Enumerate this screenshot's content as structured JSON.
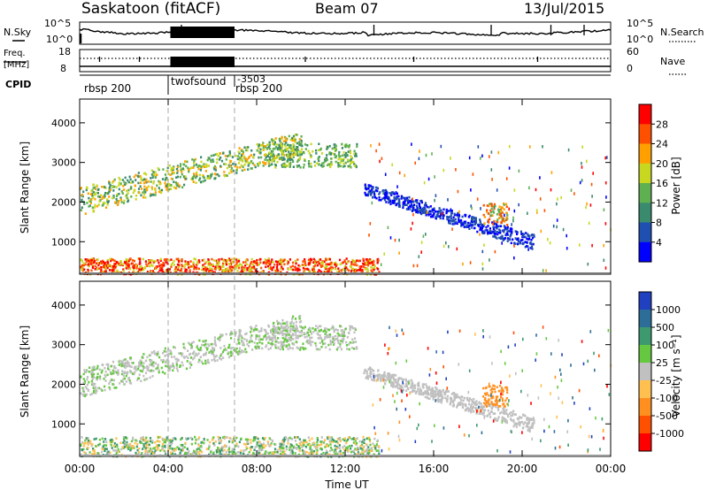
{
  "header": {
    "station": "Saskatoon (fitACF)",
    "beam": "Beam 07",
    "date": "13/Jul/2015"
  },
  "strips": {
    "nsky_label": "N.Sky",
    "nsky_ticks": [
      "10^5",
      "10^0"
    ],
    "nsearch_label": "N.Search",
    "nsearch_ticks": [
      "10^5",
      "10^0"
    ],
    "freq_label_1": "Freq.",
    "freq_label_2": "[MHz]",
    "freq_ticks": [
      "18",
      "8"
    ],
    "nave_label": "Nave",
    "nave_ticks": [
      "60",
      "0"
    ],
    "cpid_label": "CPID",
    "cpid_entries": [
      {
        "text": "rbsp 200",
        "start": "00:00"
      },
      {
        "text": "twofsound",
        "start": "04:00"
      },
      {
        "text": "-3503",
        "start": "07:00"
      },
      {
        "text": "rbsp 200",
        "start": "07:00"
      }
    ]
  },
  "time_axis": {
    "xlabel": "Time UT",
    "tick_labels": [
      "00:00",
      "04:00",
      "08:00",
      "12:00",
      "16:00",
      "20:00",
      "00:00"
    ]
  },
  "chart_data": [
    {
      "type": "heatmap",
      "name_key": "power",
      "ylabel": "Slant Range [km]",
      "ylim": [
        180,
        4600
      ],
      "yticks": [
        1000,
        2000,
        3000,
        4000
      ],
      "xlim_hours": [
        0,
        24
      ],
      "colorbar_label": "Power [dB]",
      "colorbar_ticks": [
        "4",
        "8",
        "12",
        "16",
        "20",
        "24",
        "28"
      ],
      "colors": [
        "#0000ff",
        "#1f4fb0",
        "#3a8a6e",
        "#5fb050",
        "#c8d820",
        "#ffa000",
        "#ff5000",
        "#ff0000"
      ],
      "features": [
        {
          "desc": "near-range scatter",
          "t": [
            0,
            13.5
          ],
          "range": [
            200,
            600
          ],
          "levels": [
            4,
            6,
            7
          ]
        },
        {
          "desc": "rising echo band",
          "t": [
            0,
            10
          ],
          "range_start": [
            1700,
            2100
          ],
          "range_end": [
            3200,
            3500
          ],
          "levels": [
            2,
            3,
            4,
            5
          ]
        },
        {
          "desc": "high band",
          "t": [
            8.5,
            12.5
          ],
          "range": [
            2900,
            3500
          ],
          "levels": [
            2,
            3,
            4
          ]
        },
        {
          "desc": "descending band",
          "t": [
            12.8,
            20.5
          ],
          "range_start": [
            2200,
            2200
          ],
          "range_end": [
            800,
            900
          ],
          "levels": [
            0,
            1
          ]
        },
        {
          "desc": "patch",
          "t": [
            18.2,
            19.3
          ],
          "range": [
            1450,
            2000
          ],
          "levels": [
            3,
            5,
            6
          ]
        }
      ]
    },
    {
      "type": "heatmap",
      "name_key": "velocity",
      "ylabel": "Slant Range [km]",
      "ylim": [
        180,
        4600
      ],
      "yticks": [
        1000,
        2000,
        3000,
        4000
      ],
      "xlim_hours": [
        0,
        24
      ],
      "colorbar_label": "Velocity [m s⁻¹]",
      "colorbar_ticks": [
        "1000",
        "500",
        "100",
        "25",
        "-25",
        "-100",
        "-500",
        "-1000"
      ],
      "colors": [
        "#2040c0",
        "#2c6e98",
        "#3c9a6e",
        "#66c840",
        "#c0c0c0",
        "#ffc050",
        "#ff9020",
        "#ff5000",
        "#ff0000"
      ],
      "features": [
        {
          "desc": "near-range scatter",
          "t": [
            0,
            13.5
          ],
          "range": [
            200,
            700
          ],
          "levels": [
            2,
            3,
            4,
            5
          ]
        },
        {
          "desc": "rising echo band",
          "t": [
            0,
            10
          ],
          "range_start": [
            1700,
            2100
          ],
          "range_end": [
            3200,
            3500
          ],
          "levels": [
            4,
            4,
            3
          ]
        },
        {
          "desc": "high band",
          "t": [
            8.5,
            12.5
          ],
          "range": [
            2900,
            3500
          ],
          "levels": [
            4,
            4,
            3
          ]
        },
        {
          "desc": "descending band",
          "t": [
            12.8,
            20.5
          ],
          "range_start": [
            2200,
            2200
          ],
          "range_end": [
            800,
            900
          ],
          "levels": [
            4
          ]
        },
        {
          "desc": "patch",
          "t": [
            18.2,
            19.3
          ],
          "range": [
            1450,
            2000
          ],
          "levels": [
            6
          ]
        }
      ]
    }
  ]
}
